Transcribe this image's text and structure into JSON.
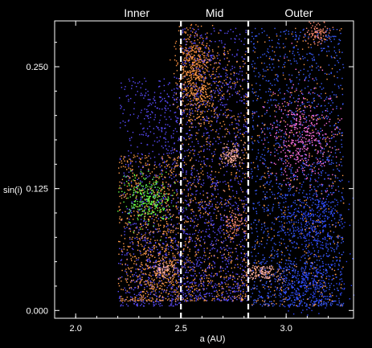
{
  "chart_data": {
    "type": "scatter",
    "title": "",
    "xlabel": "a (AU)",
    "ylabel": "sin(i)",
    "xlim": [
      1.9,
      3.32
    ],
    "ylim": [
      -0.008,
      0.297
    ],
    "x_ticks": [
      {
        "value": 2.0,
        "label": "2.0"
      },
      {
        "value": 2.5,
        "label": "2.5"
      },
      {
        "value": 3.0,
        "label": "3.0"
      }
    ],
    "y_ticks": [
      {
        "value": 0.0,
        "label": "0.000"
      },
      {
        "value": 0.125,
        "label": "0.125"
      },
      {
        "value": 0.25,
        "label": "0.250"
      }
    ],
    "region_boundaries": [
      2.5,
      2.82
    ],
    "region_labels": [
      {
        "text": "Inner",
        "x": 2.29
      },
      {
        "text": "Mid",
        "x": 2.66
      },
      {
        "text": "Outer",
        "x": 3.06
      }
    ],
    "grid": false,
    "legend": "none",
    "background_color": "#000000",
    "foreground_color": "#ffffff",
    "point_colors": [
      "#ff9a4a",
      "#ff8c3c",
      "#ff6a8a",
      "#8866ff",
      "#3a5cff",
      "#ff70e0",
      "#66ff44",
      "#ffb0a0"
    ],
    "clusters": [
      {
        "color": "#5a4cff",
        "x_range": [
          2.2,
          2.5
        ],
        "y_range": [
          0.005,
          0.24
        ],
        "density": 1100
      },
      {
        "color": "#ff9a4a",
        "x_range": [
          2.2,
          2.49
        ],
        "y_range": [
          0.01,
          0.16
        ],
        "density": 900
      },
      {
        "color": "#66ff44",
        "x_center": 2.34,
        "y_center": 0.113,
        "x_spread": 0.055,
        "y_spread": 0.013,
        "density": 260
      },
      {
        "color": "#ffb0a0",
        "x_center": 2.42,
        "y_center": 0.043,
        "x_spread": 0.025,
        "y_spread": 0.004,
        "density": 70
      },
      {
        "color": "#ff9a4a",
        "x_center": 2.58,
        "y_center": 0.235,
        "x_spread": 0.05,
        "y_spread": 0.025,
        "density": 380
      },
      {
        "color": "#ff8c3c",
        "x_center": 2.56,
        "y_center": 0.255,
        "x_spread": 0.04,
        "y_spread": 0.015,
        "density": 180
      },
      {
        "color": "#5a4cff",
        "x_range": [
          2.5,
          2.82
        ],
        "y_range": [
          0.01,
          0.29
        ],
        "density": 1300
      },
      {
        "color": "#ff9a4a",
        "x_range": [
          2.5,
          2.82
        ],
        "y_range": [
          0.01,
          0.27
        ],
        "density": 650
      },
      {
        "color": "#ffb0a0",
        "x_center": 2.74,
        "y_center": 0.16,
        "x_spread": 0.025,
        "y_spread": 0.006,
        "density": 100
      },
      {
        "color": "#ff8a70",
        "x_center": 2.75,
        "y_center": 0.09,
        "x_spread": 0.02,
        "y_spread": 0.006,
        "density": 60
      },
      {
        "color": "#3a5cff",
        "x_range": [
          2.83,
          3.27
        ],
        "y_range": [
          0.005,
          0.29
        ],
        "density": 1500
      },
      {
        "color": "#ff70e0",
        "x_center": 3.07,
        "y_center": 0.18,
        "x_spread": 0.08,
        "y_spread": 0.025,
        "density": 420
      },
      {
        "color": "#ff8a70",
        "x_center": 3.15,
        "y_center": 0.287,
        "x_spread": 0.03,
        "y_spread": 0.006,
        "density": 90
      },
      {
        "color": "#ffb0a0",
        "x_center": 2.88,
        "y_center": 0.039,
        "x_spread": 0.04,
        "y_spread": 0.004,
        "density": 130
      },
      {
        "color": "#2f48ff",
        "x_center": 3.12,
        "y_center": 0.09,
        "x_spread": 0.07,
        "y_spread": 0.02,
        "density": 300
      },
      {
        "color": "#2f48ff",
        "x_center": 3.1,
        "y_center": 0.025,
        "x_spread": 0.09,
        "y_spread": 0.012,
        "density": 280
      },
      {
        "color": "#ff9a4a",
        "x_range": [
          2.83,
          3.27
        ],
        "y_range": [
          0.005,
          0.29
        ],
        "density": 350
      }
    ]
  }
}
